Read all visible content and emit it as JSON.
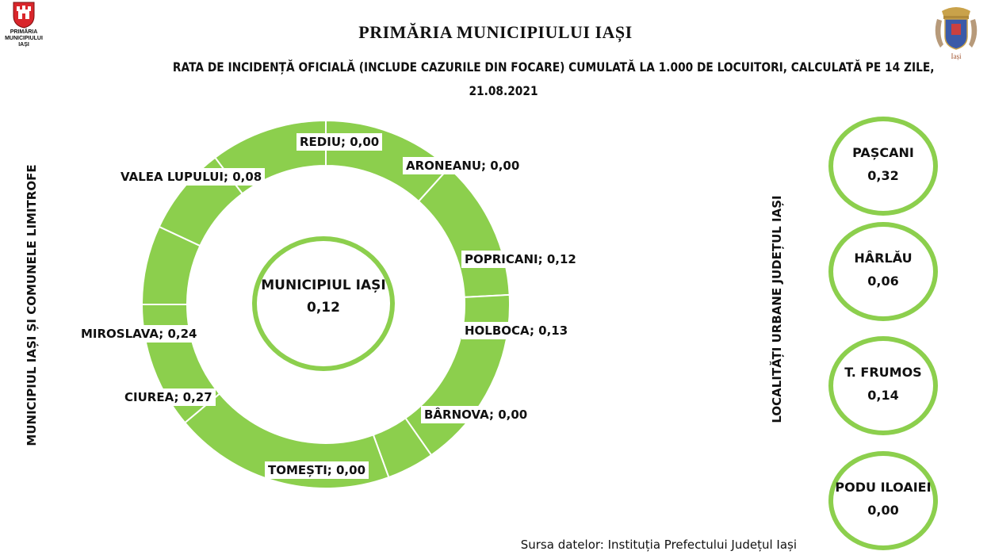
{
  "header": {
    "crest_caption": [
      "PRIMĂRIA",
      "MUNICIPIULUI",
      "IAȘI"
    ],
    "title": "PRIMĂRIA MUNICIPIULUI IAȘI",
    "subtitle_line1": "RATA DE INCIDENȚĂ OFICIALĂ (INCLUDE CAZURILE DIN FOCARE) CUMULATĂ LA 1.000 DE LOCUITORI, CALCULATĂ PE 14 ZILE,",
    "subtitle_line2": "21.08.2021"
  },
  "side_labels": {
    "left": "MUNICIPIUL IAȘI ȘI COMUNELE LIMITROFE",
    "right": "LOCALITĂȚI URBANE JUDEȚUL IAȘI"
  },
  "colors": {
    "accent_green": "#8ccf4d",
    "divider": "#ffffff"
  },
  "chart_data": [
    {
      "type": "pie",
      "subtype": "donut",
      "categories": [
        "REDIU",
        "ARONEANU",
        "POPRICANI",
        "HOLBOCA",
        "BÂRNOVA",
        "TOMEȘTI",
        "CIUREA",
        "MIROSLAVA",
        "VALEA LUPULUI"
      ],
      "values": [
        0.0,
        0.0,
        0.12,
        0.13,
        0.0,
        0.0,
        0.27,
        0.24,
        0.08
      ],
      "slice_labels": [
        "REDIU; 0,00",
        "ARONEANU; 0,00",
        "POPRICANI; 0,12",
        "HOLBOCA; 0,13",
        "BÂRNOVA; 0,00",
        "TOMEȘTI; 0,00",
        "CIUREA; 0,27",
        "MIROSLAVA; 0,24",
        "VALEA LUPULUI; 0,08"
      ],
      "slice_extent_deg": [
        42,
        45,
        58,
        15,
        70,
        40,
        25,
        28,
        37
      ],
      "center": {
        "name": "MUNICIPIUL IAȘI",
        "value": "0,12"
      }
    },
    {
      "type": "table",
      "towns": [
        {
          "name": "PAȘCANI",
          "value": "0,32"
        },
        {
          "name": "HÂRLĂU",
          "value": "0,06"
        },
        {
          "name": "T. FRUMOS",
          "value": "0,14"
        },
        {
          "name": "PODU ILOAIEI",
          "value": "0,00"
        }
      ]
    }
  ],
  "footer": {
    "source": "Sursa datelor: Instituția Prefectului Județul Iași"
  }
}
